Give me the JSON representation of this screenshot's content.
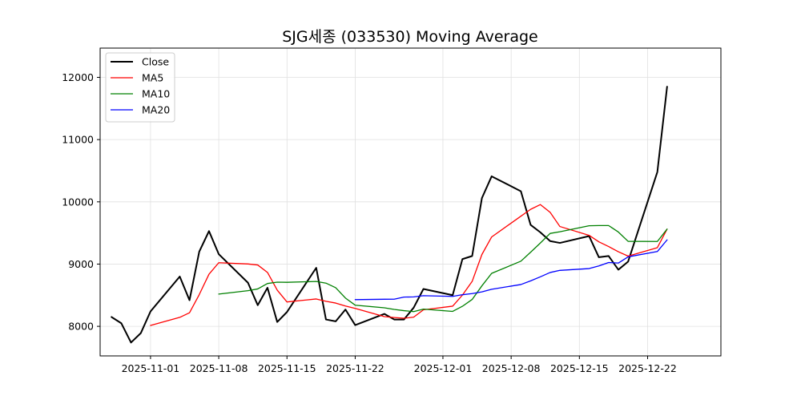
{
  "chart_data": {
    "type": "line",
    "title": "SJG세종 (033530) Moving Average",
    "xlabel": "",
    "ylabel": "",
    "x_tick_labels": [
      "2025-11-01",
      "2025-11-08",
      "2025-11-15",
      "2025-11-22",
      "2025-12-01",
      "2025-12-08",
      "2025-12-15",
      "2025-12-22"
    ],
    "x_tick_days": [
      4,
      11,
      18,
      25,
      34,
      41,
      48,
      55
    ],
    "x_range": [
      -1.17,
      62.52
    ],
    "y_ticks": [
      8000,
      9000,
      10000,
      11000,
      12000
    ],
    "y_tick_labels": [
      "8000",
      "9000",
      "10000",
      "11000",
      "12000"
    ],
    "ylim": [
      7525,
      12470
    ],
    "grid": true,
    "legend_position": "upper-left",
    "x_day_origin": "2025-10-28",
    "dates": [
      "2025-10-28",
      "2025-10-29",
      "2025-10-30",
      "2025-10-31",
      "2025-11-01",
      "2025-11-04",
      "2025-11-05",
      "2025-11-06",
      "2025-11-07",
      "2025-11-08",
      "2025-11-11",
      "2025-11-12",
      "2025-11-13",
      "2025-11-14",
      "2025-11-15",
      "2025-11-18",
      "2025-11-19",
      "2025-11-20",
      "2025-11-21",
      "2025-11-22",
      "2025-11-25",
      "2025-11-26",
      "2025-11-27",
      "2025-11-28",
      "2025-11-29",
      "2025-12-02",
      "2025-12-03",
      "2025-12-04",
      "2025-12-05",
      "2025-12-06",
      "2025-12-09",
      "2025-12-10",
      "2025-12-11",
      "2025-12-12",
      "2025-12-13",
      "2025-12-16",
      "2025-12-17",
      "2025-12-18",
      "2025-12-19",
      "2025-12-20",
      "2025-12-23",
      "2025-12-24"
    ],
    "x_days": [
      0,
      1,
      2,
      3,
      4,
      7,
      8,
      9,
      10,
      11,
      14,
      15,
      16,
      17,
      18,
      21,
      22,
      23,
      24,
      25,
      28,
      29,
      30,
      31,
      32,
      35,
      36,
      37,
      38,
      39,
      42,
      43,
      44,
      45,
      46,
      49,
      50,
      51,
      52,
      53,
      56,
      57
    ],
    "series": [
      {
        "name": "Close",
        "color": "#000000",
        "width": 2,
        "values": [
          8150,
          8050,
          7740,
          7890,
          8240,
          8800,
          8420,
          9200,
          9530,
          9160,
          8700,
          8340,
          8620,
          8070,
          8230,
          8940,
          8110,
          8080,
          8270,
          8020,
          8200,
          8110,
          8110,
          8300,
          8600,
          8500,
          9080,
          9130,
          10060,
          10410,
          10170,
          9630,
          9510,
          9370,
          9340,
          9450,
          9110,
          9130,
          8910,
          9040,
          10480,
          11850
        ]
      },
      {
        "name": "MA5",
        "color": "#ff0000",
        "width": 1.3,
        "values": [
          null,
          null,
          null,
          null,
          8014,
          8144,
          8218,
          8510,
          8838,
          9022,
          9002,
          8986,
          8866,
          8582,
          8392,
          8440,
          8402,
          8374,
          8326,
          8288,
          8156,
          8142,
          8130,
          8148,
          8266,
          8324,
          8502,
          8722,
          9154,
          9436,
          9770,
          9880,
          9956,
          9832,
          9604,
          9462,
          9358,
          9282,
          9198,
          9128,
          9264,
          9562
        ]
      },
      {
        "name": "MA10",
        "color": "#008000",
        "width": 1.3,
        "values": [
          null,
          null,
          null,
          null,
          null,
          null,
          null,
          null,
          null,
          8518,
          8573,
          8601,
          8688,
          8710,
          8707,
          8721,
          8694,
          8620,
          8454,
          8340,
          8298,
          8272,
          8252,
          8237,
          8277,
          8240,
          8322,
          8432,
          8651,
          8851,
          9047,
          9191,
          9339,
          9493,
          9520,
          9616,
          9619,
          9619,
          9515,
          9366,
          9363,
          9562
        ]
      },
      {
        "name": "MA20",
        "color": "#0000ff",
        "width": 1.3,
        "values": [
          null,
          null,
          null,
          null,
          null,
          null,
          null,
          null,
          null,
          null,
          null,
          null,
          null,
          null,
          null,
          null,
          null,
          null,
          null,
          8429,
          8435,
          8436,
          8470,
          8473,
          8492,
          8481,
          8508,
          8526,
          8553,
          8596,
          8672,
          8731,
          8796,
          8865,
          8899,
          8928,
          8971,
          9025,
          9017,
          9116,
          9202,
          9389
        ]
      }
    ]
  }
}
